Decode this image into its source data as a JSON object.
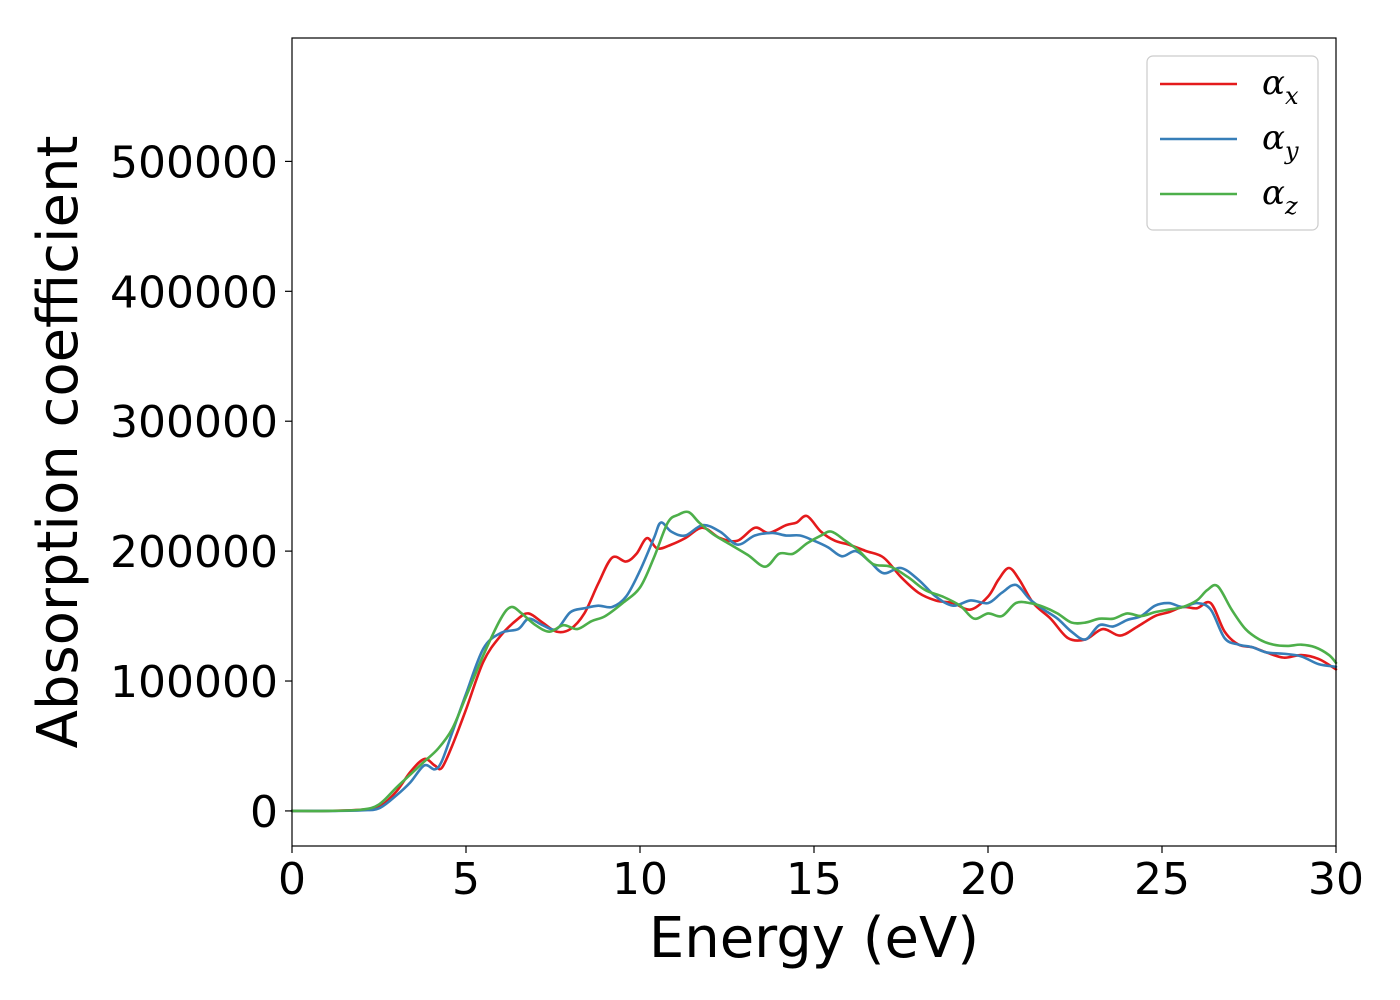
{
  "chart_data": {
    "type": "line",
    "xlabel": "Energy (eV)",
    "ylabel": "Absorption coefficient",
    "xlim": [
      0,
      30
    ],
    "ylim": [
      -27000,
      595000
    ],
    "xticks": [
      0,
      5,
      10,
      15,
      20,
      25,
      30
    ],
    "yticks": [
      0,
      100000,
      200000,
      300000,
      400000,
      500000
    ],
    "grid": false,
    "legend_position": "top-right",
    "series": [
      {
        "name": "α_x",
        "legend_symbol": "α",
        "legend_subscript": "x",
        "color": "#e41a1c",
        "x": [
          0,
          1,
          2,
          2.5,
          3,
          3.4,
          3.8,
          4.1,
          4.3,
          4.6,
          5,
          5.5,
          6,
          6.5,
          6.8,
          7.2,
          7.6,
          8,
          8.4,
          8.8,
          9.2,
          9.6,
          9.9,
          10.2,
          10.5,
          10.9,
          11.3,
          11.8,
          12.3,
          12.8,
          13.3,
          13.7,
          14.2,
          14.5,
          14.8,
          15.2,
          15.6,
          16,
          16.5,
          17,
          17.5,
          18,
          18.5,
          19,
          19.5,
          20,
          20.3,
          20.6,
          20.9,
          21.3,
          21.8,
          22.3,
          22.8,
          23.3,
          23.8,
          24.3,
          24.8,
          25.2,
          25.6,
          26,
          26.4,
          26.8,
          27.2,
          27.6,
          28,
          28.5,
          29,
          29.5,
          30
        ],
        "y": [
          0,
          0,
          1000,
          3000,
          15000,
          30000,
          40000,
          35000,
          33000,
          50000,
          78000,
          115000,
          135000,
          148000,
          152000,
          145000,
          138000,
          140000,
          152000,
          175000,
          195000,
          192000,
          198000,
          210000,
          202000,
          205000,
          210000,
          218000,
          210000,
          208000,
          218000,
          214000,
          220000,
          222000,
          227000,
          215000,
          208000,
          205000,
          200000,
          195000,
          180000,
          168000,
          162000,
          160000,
          155000,
          165000,
          178000,
          187000,
          178000,
          160000,
          148000,
          133000,
          132000,
          140000,
          135000,
          142000,
          150000,
          153000,
          157000,
          156000,
          160000,
          138000,
          128000,
          126000,
          122000,
          118000,
          120000,
          117000,
          109000
        ]
      },
      {
        "name": "α_y",
        "legend_symbol": "α",
        "legend_subscript": "y",
        "color": "#377eb8",
        "x": [
          0,
          1,
          2,
          2.5,
          3,
          3.4,
          3.8,
          4.1,
          4.3,
          4.6,
          5,
          5.5,
          6,
          6.5,
          6.8,
          7.2,
          7.6,
          8,
          8.4,
          8.8,
          9.2,
          9.6,
          10,
          10.4,
          10.6,
          10.9,
          11.3,
          11.8,
          12.3,
          12.8,
          13.3,
          13.8,
          14.2,
          14.6,
          15,
          15.4,
          15.8,
          16.2,
          16.6,
          17,
          17.5,
          18,
          18.5,
          19,
          19.5,
          20,
          20.4,
          20.8,
          21.2,
          21.6,
          22,
          22.4,
          22.8,
          23.2,
          23.6,
          24,
          24.4,
          24.8,
          25.2,
          25.6,
          26,
          26.4,
          26.8,
          27.2,
          27.6,
          28,
          28.5,
          29,
          29.5,
          30
        ],
        "y": [
          0,
          0,
          500,
          2000,
          12000,
          22000,
          35000,
          32000,
          38000,
          60000,
          90000,
          125000,
          137000,
          140000,
          148000,
          143000,
          140000,
          153000,
          156000,
          158000,
          157000,
          165000,
          185000,
          210000,
          222000,
          215000,
          212000,
          220000,
          215000,
          205000,
          212000,
          214000,
          212000,
          212000,
          208000,
          203000,
          196000,
          200000,
          192000,
          183000,
          187000,
          178000,
          165000,
          158000,
          162000,
          160000,
          168000,
          174000,
          163000,
          155000,
          148000,
          138000,
          132000,
          143000,
          142000,
          147000,
          150000,
          158000,
          160000,
          157000,
          160000,
          155000,
          133000,
          128000,
          126000,
          122000,
          121000,
          119000,
          113000,
          111000
        ]
      },
      {
        "name": "α_z",
        "legend_symbol": "α",
        "legend_subscript": "z",
        "color": "#4daf4a",
        "x": [
          0,
          1,
          2,
          2.5,
          3,
          3.4,
          3.8,
          4.2,
          4.6,
          5,
          5.5,
          6,
          6.3,
          6.6,
          7,
          7.4,
          7.8,
          8.2,
          8.6,
          9,
          9.5,
          10,
          10.4,
          10.8,
          11.1,
          11.4,
          11.7,
          12.1,
          12.6,
          13.1,
          13.6,
          14,
          14.4,
          14.8,
          15.2,
          15.5,
          15.9,
          16.3,
          16.7,
          17.2,
          17.7,
          18.2,
          18.7,
          19.2,
          19.6,
          20,
          20.4,
          20.8,
          21.2,
          21.6,
          22,
          22.4,
          22.8,
          23.2,
          23.6,
          24,
          24.4,
          24.8,
          25.2,
          25.6,
          26,
          26.3,
          26.6,
          27,
          27.4,
          27.8,
          28.2,
          28.6,
          29,
          29.4,
          29.8,
          30
        ],
        "y": [
          0,
          0,
          1000,
          5000,
          18000,
          28000,
          38000,
          48000,
          63000,
          88000,
          120000,
          148000,
          157000,
          152000,
          143000,
          138000,
          143000,
          140000,
          146000,
          150000,
          160000,
          172000,
          195000,
          222000,
          228000,
          230000,
          222000,
          213000,
          205000,
          197000,
          188000,
          198000,
          198000,
          206000,
          212000,
          215000,
          208000,
          200000,
          190000,
          188000,
          180000,
          170000,
          165000,
          158000,
          148000,
          152000,
          150000,
          160000,
          160000,
          157000,
          152000,
          145000,
          145000,
          148000,
          148000,
          152000,
          150000,
          153000,
          155000,
          157000,
          162000,
          170000,
          173000,
          155000,
          140000,
          132000,
          128000,
          127000,
          128000,
          126000,
          120000,
          114000
        ]
      }
    ]
  }
}
